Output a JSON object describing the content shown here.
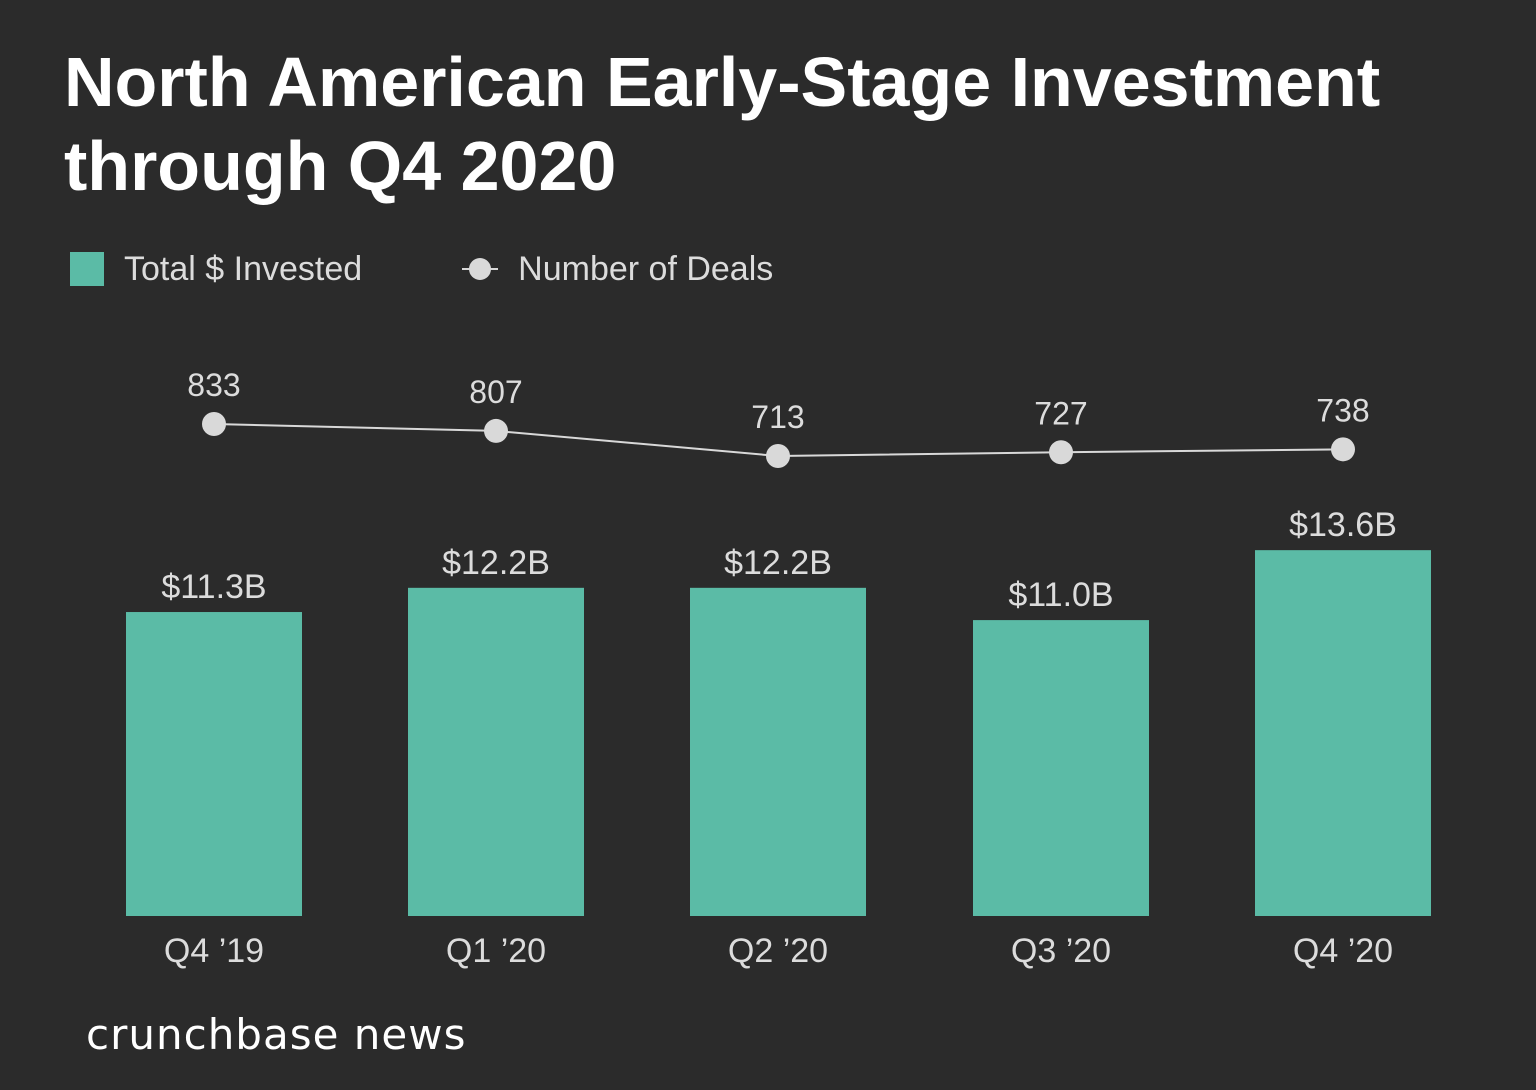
{
  "chart_data": {
    "type": "bar",
    "title": "North American Early-Stage Investment through Q4 2020",
    "categories": [
      "Q4 ’19",
      "Q1 ’20",
      "Q2 ’20",
      "Q3 ’20",
      "Q4 ’20"
    ],
    "series": [
      {
        "name": "Total $ Invested",
        "type": "bar",
        "values": [
          11.3,
          12.2,
          12.2,
          11.0,
          13.6
        ],
        "labels": [
          "$11.3B",
          "$12.2B",
          "$12.2B",
          "$11.0B",
          "$13.6B"
        ],
        "color": "#5bbba6"
      },
      {
        "name": "Number of Deals",
        "type": "line",
        "values": [
          833,
          807,
          713,
          727,
          738
        ],
        "labels": [
          "833",
          "807",
          "713",
          "727",
          "738"
        ],
        "color": "#d9d9d9"
      }
    ],
    "legend": "top-left",
    "grid": false
  },
  "brand": "crunchbase news",
  "colors": {
    "background": "#2b2b2b",
    "bar": "#5bbba6",
    "line": "#d9d9d9",
    "text": "#ffffff",
    "label": "#dcdcdc"
  }
}
